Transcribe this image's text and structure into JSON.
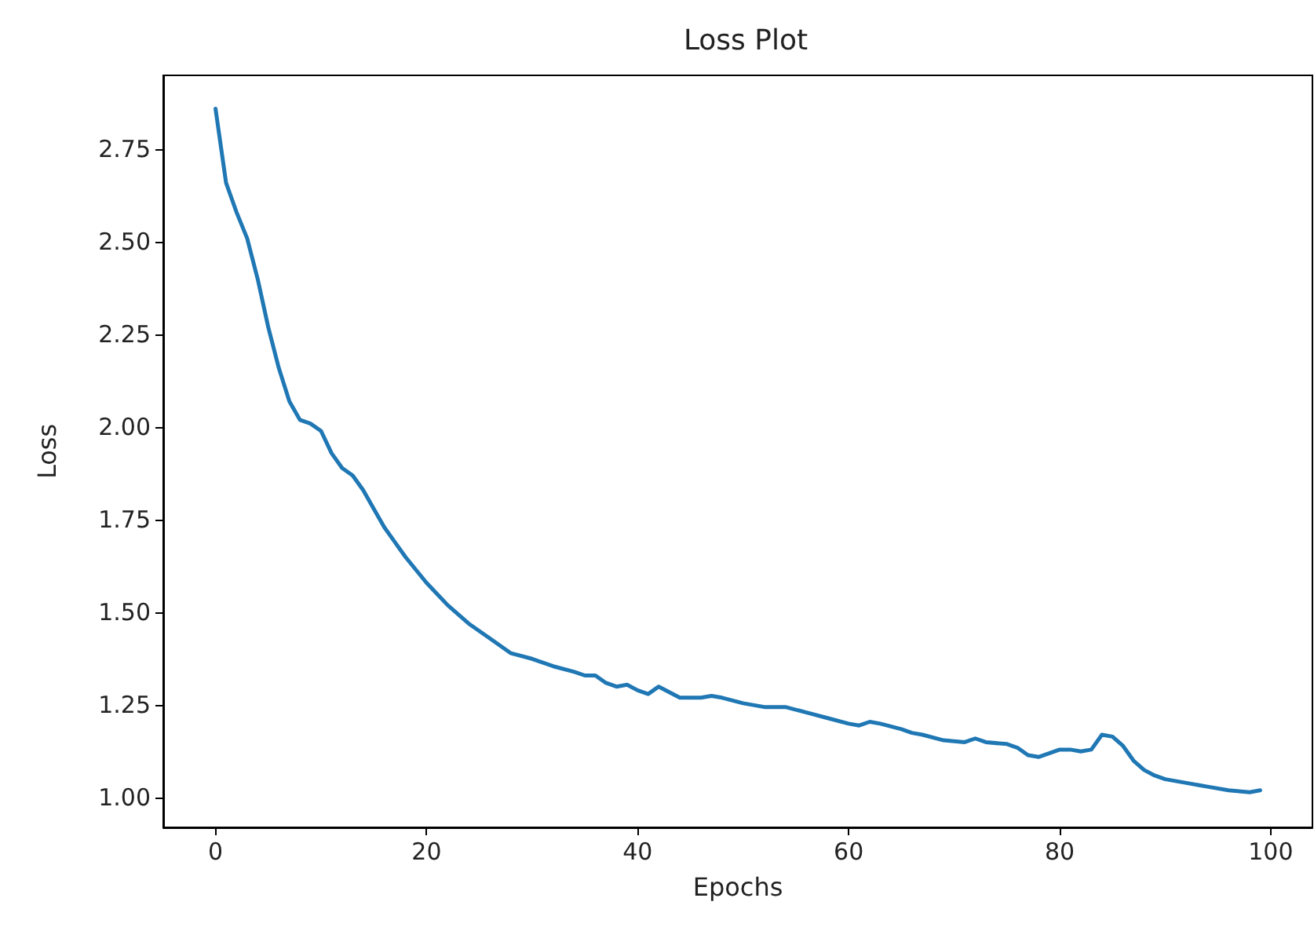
{
  "chart_data": {
    "type": "line",
    "title": "Loss Plot",
    "xlabel": "Epochs",
    "ylabel": "Loss",
    "x": [
      0,
      1,
      2,
      3,
      4,
      5,
      6,
      7,
      8,
      9,
      10,
      11,
      12,
      13,
      14,
      15,
      16,
      17,
      18,
      20,
      22,
      24,
      26,
      27,
      28,
      30,
      32,
      34,
      35,
      36,
      37,
      38,
      39,
      40,
      41,
      42,
      43,
      44,
      46,
      47,
      48,
      50,
      52,
      54,
      56,
      58,
      60,
      61,
      62,
      63,
      65,
      66,
      67,
      69,
      71,
      72,
      73,
      75,
      76,
      77,
      78,
      79,
      80,
      81,
      82,
      83,
      84,
      85,
      86,
      87,
      88,
      89,
      90,
      92,
      94,
      96,
      98,
      99
    ],
    "series": [
      {
        "color": "#1f77b4",
        "values": [
          2.86,
          2.66,
          2.58,
          2.51,
          2.4,
          2.27,
          2.16,
          2.07,
          2.02,
          2.01,
          1.99,
          1.93,
          1.89,
          1.87,
          1.83,
          1.78,
          1.73,
          1.69,
          1.65,
          1.58,
          1.52,
          1.47,
          1.43,
          1.41,
          1.39,
          1.375,
          1.355,
          1.34,
          1.33,
          1.33,
          1.31,
          1.3,
          1.305,
          1.29,
          1.28,
          1.3,
          1.285,
          1.27,
          1.27,
          1.275,
          1.27,
          1.255,
          1.245,
          1.245,
          1.23,
          1.215,
          1.2,
          1.195,
          1.205,
          1.2,
          1.185,
          1.175,
          1.17,
          1.155,
          1.15,
          1.16,
          1.15,
          1.145,
          1.135,
          1.115,
          1.11,
          1.12,
          1.13,
          1.13,
          1.125,
          1.13,
          1.17,
          1.165,
          1.14,
          1.1,
          1.075,
          1.06,
          1.05,
          1.04,
          1.03,
          1.02,
          1.015,
          1.02
        ]
      }
    ],
    "xlim": [
      -4.95,
      103.95
    ],
    "xticks": [
      0,
      20,
      40,
      60,
      80,
      100
    ],
    "ylim": [
      0.92,
      2.95
    ],
    "yticks": [
      {
        "value": 1,
        "label": "1.00"
      },
      {
        "value": 1.25,
        "label": "1.25"
      },
      {
        "value": 1.5,
        "label": "1.50"
      },
      {
        "value": 1.75,
        "label": "1.75"
      },
      {
        "value": 2,
        "label": "2.00"
      },
      {
        "value": 2.25,
        "label": "2.25"
      },
      {
        "value": 2.5,
        "label": "2.50"
      },
      {
        "value": 2.75,
        "label": "2.75"
      }
    ],
    "grid": false,
    "marker": "none",
    "line_style": "solid"
  }
}
